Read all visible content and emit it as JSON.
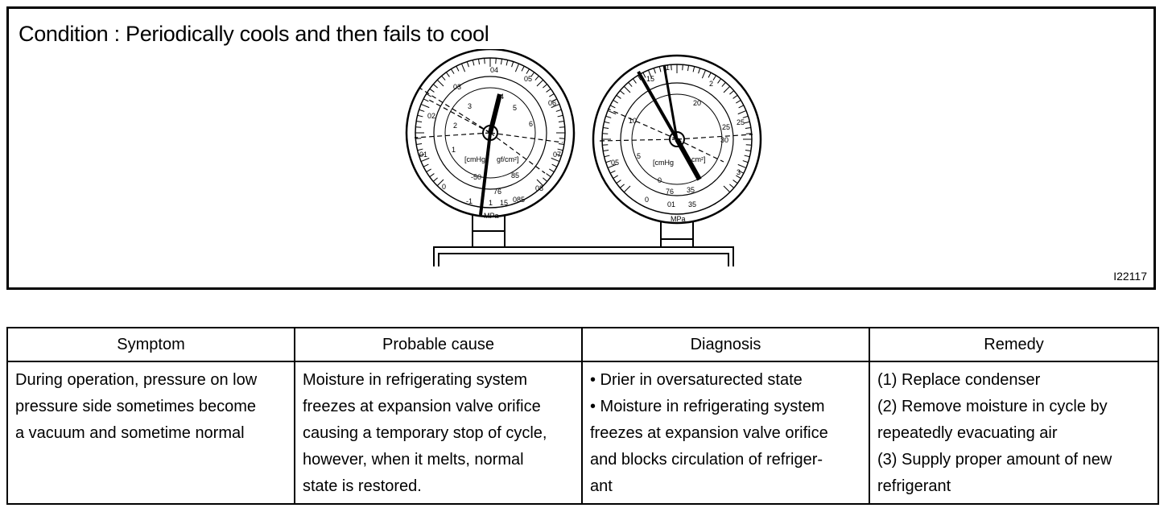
{
  "figure": {
    "condition": "Condition : Periodically cools and then fails to cool",
    "figure_id": "I22117",
    "low_gauge": {
      "outer_labels": [
        "04",
        "05",
        "06",
        "07",
        "08",
        "085",
        "03",
        "02",
        "01",
        "0"
      ],
      "inner_labels": [
        "4",
        "5",
        "6",
        "3",
        "2",
        "1"
      ],
      "center_labels": [
        "[cmHg",
        "gf/cm²]",
        "-50",
        "76",
        "85",
        "15",
        "-1",
        "1"
      ],
      "unit": "MPa"
    },
    "high_gauge": {
      "outer_labels": [
        "1",
        "15",
        "2",
        "25",
        "3",
        "35",
        "05",
        "0",
        "01"
      ],
      "inner_labels": [
        "20",
        "25",
        "30",
        "10",
        "5",
        "0"
      ],
      "center_labels": [
        "[cmHg",
        "cm²]",
        "76",
        "35"
      ],
      "unit": "MPa"
    }
  },
  "table": {
    "headers": [
      "Symptom",
      "Probable cause",
      "Diagnosis",
      "Remedy"
    ],
    "symptom": [
      "During operation, pressure on low",
      "pressure side sometimes become",
      "a vacuum and sometime normal"
    ],
    "probable_cause": [
      "Moisture in refrigerating system",
      "freezes at expansion valve orifice",
      "causing a temporary stop of cycle,",
      "however, when it melts, normal",
      "state is restored."
    ],
    "diagnosis": [
      "• Drier in oversaturected state",
      "• Moisture in refrigerating system",
      "freezes at expansion valve orifice",
      "and blocks circulation of refriger-",
      "ant"
    ],
    "remedy": [
      "(1) Replace condenser",
      "(2) Remove moisture in cycle by",
      "repeatedly evacuating air",
      "(3) Supply proper amount of new",
      "refrigerant"
    ]
  }
}
